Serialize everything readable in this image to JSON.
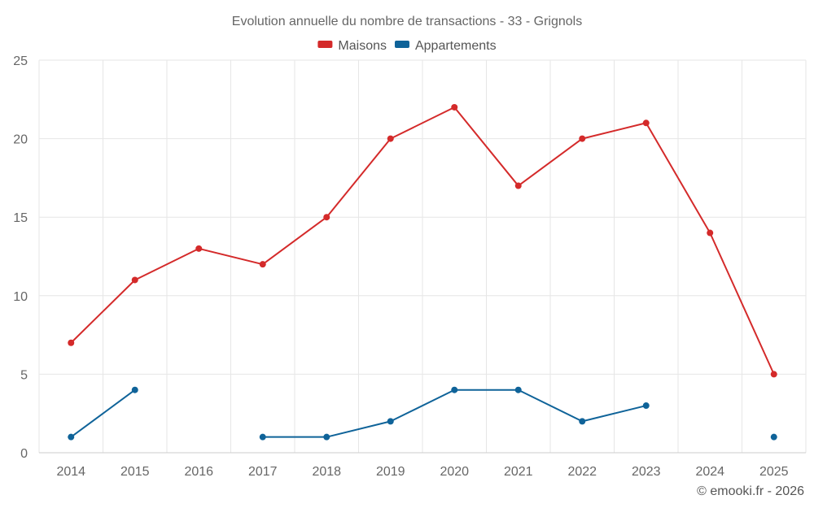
{
  "chart_data": {
    "type": "line",
    "title": "Evolution annuelle du nombre de transactions - 33 - Grignols",
    "categories": [
      "2014",
      "2015",
      "2016",
      "2017",
      "2018",
      "2019",
      "2020",
      "2021",
      "2022",
      "2023",
      "2024",
      "2025"
    ],
    "ylim": [
      0,
      25
    ],
    "yticks": [
      0,
      5,
      10,
      15,
      20,
      25
    ],
    "grid": true,
    "legend_position": "top-center",
    "series": [
      {
        "name": "Maisons",
        "color": "#d42a2a",
        "values": [
          7,
          11,
          13,
          12,
          15,
          20,
          22,
          17,
          20,
          21,
          14,
          5
        ]
      },
      {
        "name": "Appartements",
        "color": "#0f6399",
        "values": [
          1,
          4,
          null,
          1,
          1,
          2,
          4,
          4,
          2,
          3,
          null,
          1
        ]
      }
    ]
  },
  "credit": "© emooki.fr - 2026"
}
